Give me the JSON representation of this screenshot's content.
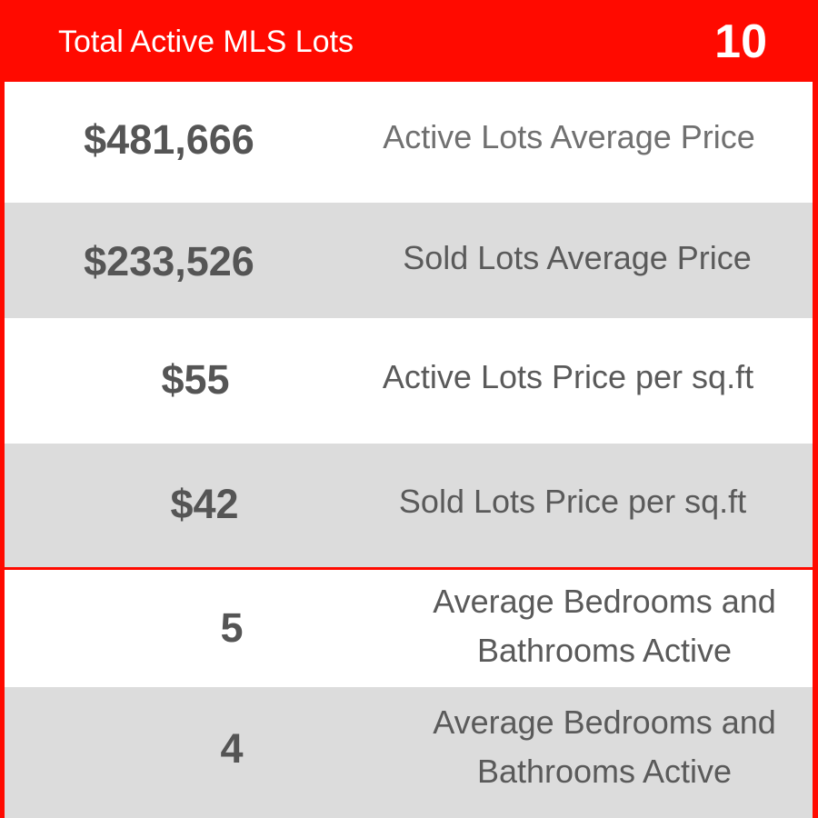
{
  "header": {
    "title": "Total Active MLS Lots",
    "count": "10"
  },
  "stats": [
    {
      "value": "$481,666",
      "label": "Active Lots Average Price"
    },
    {
      "value": "$233,526",
      "label": "Sold Lots Average Price"
    },
    {
      "value": "$55",
      "label": "Active Lots Price per sq.ft"
    },
    {
      "value": "$42",
      "label": "Sold Lots Price per sq.ft"
    },
    {
      "value": "5",
      "label_line1": "Average Bedrooms and",
      "label_line2": "Bathrooms Active"
    },
    {
      "value": "4",
      "label_line1": "Average Bedrooms and",
      "label_line2": "Bathrooms Active"
    }
  ],
  "colors": {
    "accent": "#ff0a00",
    "row_alt": "#dcdcdc",
    "text": "#555555"
  }
}
